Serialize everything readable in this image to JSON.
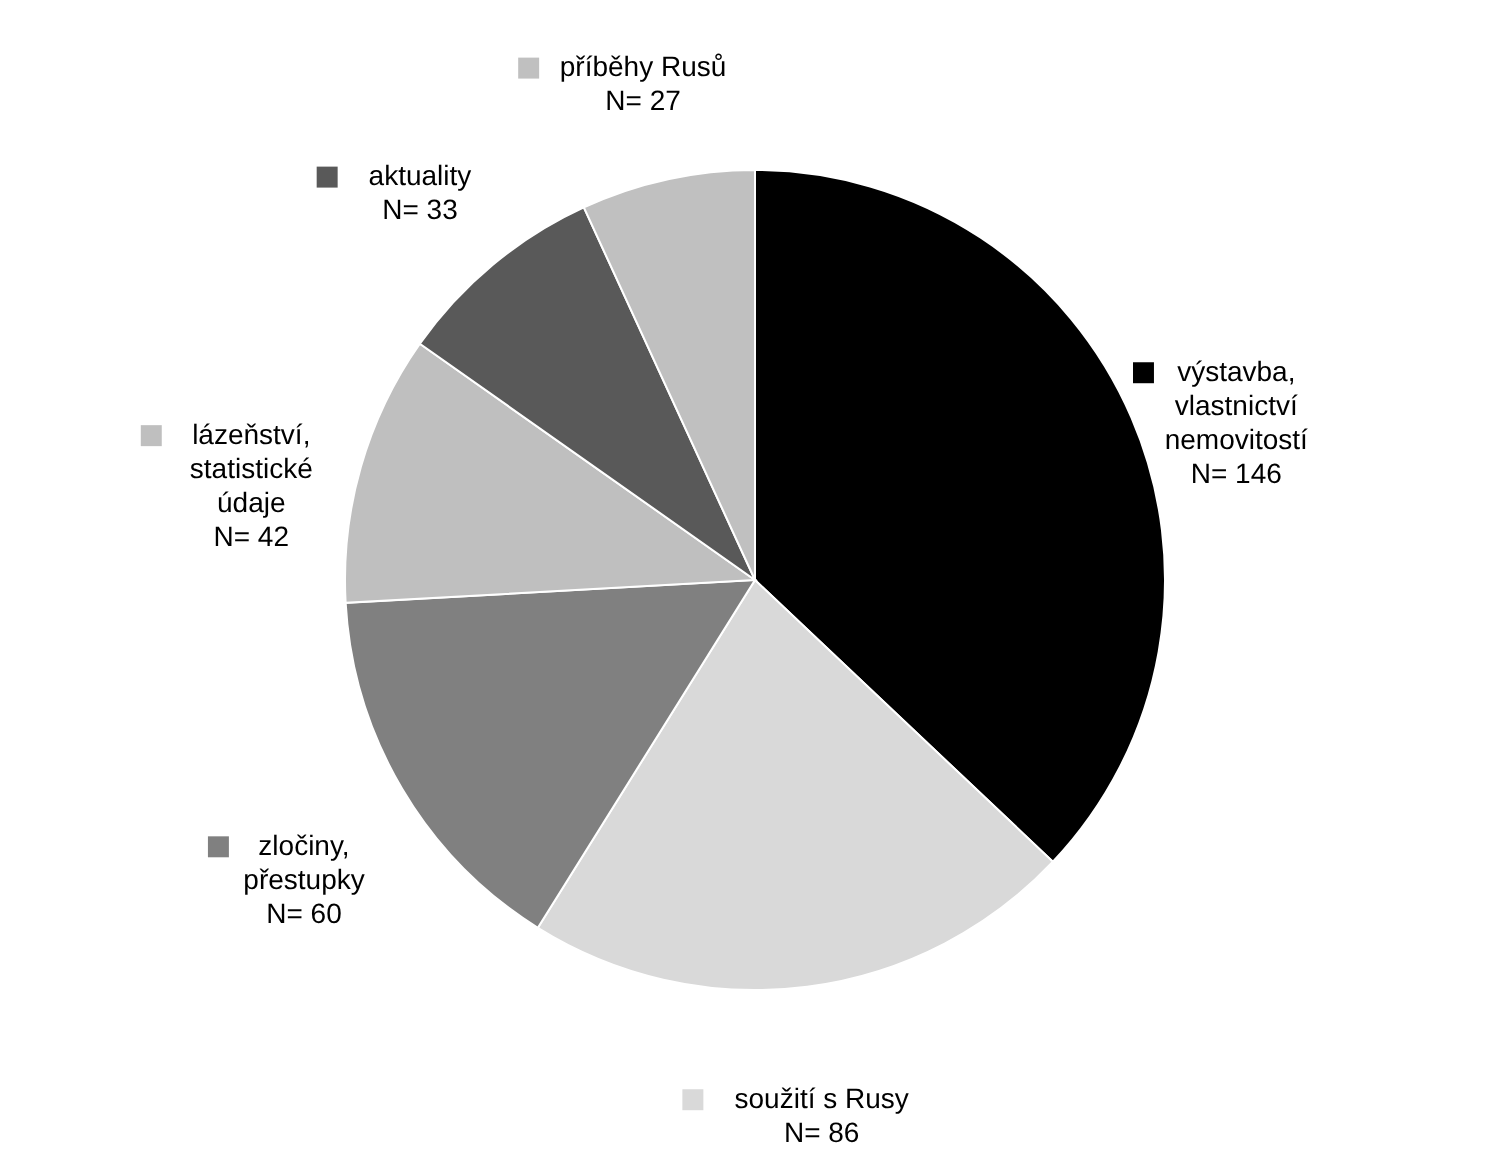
{
  "chart_data": {
    "type": "pie",
    "categories": [
      "výstavba, vlastnictví nemovitostí",
      "soužití s Rusy",
      "zločiny, přestupky",
      "lázeňství, statistické údaje",
      "aktuality",
      "příběhy Rusů"
    ],
    "values": [
      146,
      86,
      60,
      42,
      33,
      27
    ],
    "value_labels": [
      "N= 146",
      "N= 86",
      "N= 60",
      "N= 42",
      "N= 33",
      "N= 27"
    ],
    "legend": "bottom left",
    "colors": [
      "#000000",
      "#d9d9d9",
      "#808080",
      "#bfbfbf",
      "#595959",
      "#c0c0c0"
    ]
  }
}
